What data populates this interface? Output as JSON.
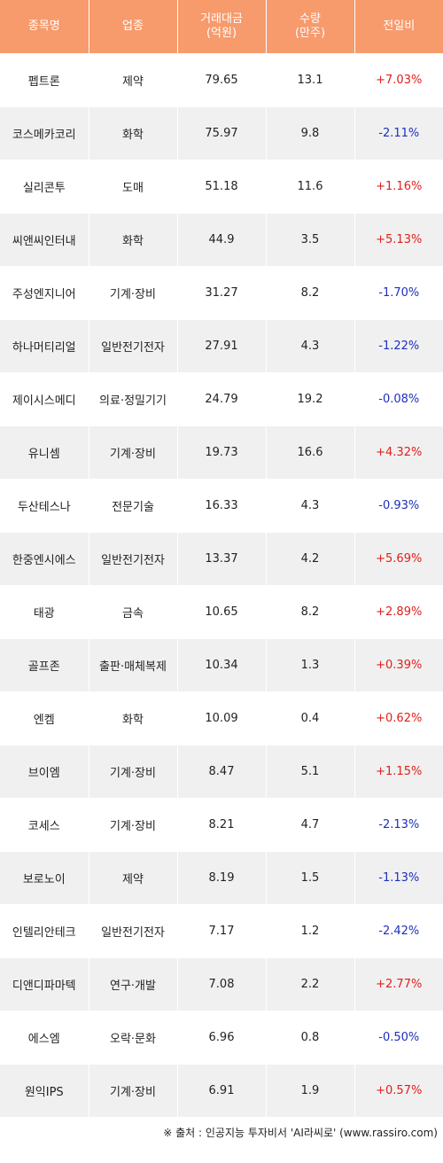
{
  "header": {
    "col_name": "종목명",
    "col_sector": "업종",
    "col_volume_line1": "거래대금",
    "col_volume_line2": "(억원)",
    "col_qty_line1": "수량",
    "col_qty_line2": "(만주)",
    "col_change": "전일비"
  },
  "colors": {
    "header_bg": "#f79a6c",
    "positive": "#e0201b",
    "negative": "#1d2fbf",
    "stripe": "#f0f0f0"
  },
  "rows": [
    {
      "name": "펩트론",
      "sector": "제약",
      "amount": "79.65",
      "qty": "13.1",
      "change": "+7.03%",
      "dir": "pos"
    },
    {
      "name": "코스메카코리",
      "sector": "화학",
      "amount": "75.97",
      "qty": "9.8",
      "change": "-2.11%",
      "dir": "neg"
    },
    {
      "name": "실리콘투",
      "sector": "도매",
      "amount": "51.18",
      "qty": "11.6",
      "change": "+1.16%",
      "dir": "pos"
    },
    {
      "name": "씨앤씨인터내",
      "sector": "화학",
      "amount": "44.9",
      "qty": "3.5",
      "change": "+5.13%",
      "dir": "pos"
    },
    {
      "name": "주성엔지니어",
      "sector": "기계·장비",
      "amount": "31.27",
      "qty": "8.2",
      "change": "-1.70%",
      "dir": "neg"
    },
    {
      "name": "하나머티리얼",
      "sector": "일반전기전자",
      "amount": "27.91",
      "qty": "4.3",
      "change": "-1.22%",
      "dir": "neg"
    },
    {
      "name": "제이시스메디",
      "sector": "의료·정밀기기",
      "amount": "24.79",
      "qty": "19.2",
      "change": "-0.08%",
      "dir": "neg"
    },
    {
      "name": "유니셈",
      "sector": "기계·장비",
      "amount": "19.73",
      "qty": "16.6",
      "change": "+4.32%",
      "dir": "pos"
    },
    {
      "name": "두산테스나",
      "sector": "전문기술",
      "amount": "16.33",
      "qty": "4.3",
      "change": "-0.93%",
      "dir": "neg"
    },
    {
      "name": "한중엔시에스",
      "sector": "일반전기전자",
      "amount": "13.37",
      "qty": "4.2",
      "change": "+5.69%",
      "dir": "pos"
    },
    {
      "name": "태광",
      "sector": "금속",
      "amount": "10.65",
      "qty": "8.2",
      "change": "+2.89%",
      "dir": "pos"
    },
    {
      "name": "골프존",
      "sector": "출판·매체복제",
      "amount": "10.34",
      "qty": "1.3",
      "change": "+0.39%",
      "dir": "pos"
    },
    {
      "name": "엔켐",
      "sector": "화학",
      "amount": "10.09",
      "qty": "0.4",
      "change": "+0.62%",
      "dir": "pos"
    },
    {
      "name": "브이엠",
      "sector": "기계·장비",
      "amount": "8.47",
      "qty": "5.1",
      "change": "+1.15%",
      "dir": "pos"
    },
    {
      "name": "코세스",
      "sector": "기계·장비",
      "amount": "8.21",
      "qty": "4.7",
      "change": "-2.13%",
      "dir": "neg"
    },
    {
      "name": "보로노이",
      "sector": "제약",
      "amount": "8.19",
      "qty": "1.5",
      "change": "-1.13%",
      "dir": "neg"
    },
    {
      "name": "인텔리안테크",
      "sector": "일반전기전자",
      "amount": "7.17",
      "qty": "1.2",
      "change": "-2.42%",
      "dir": "neg"
    },
    {
      "name": "디앤디파마텍",
      "sector": "연구·개발",
      "amount": "7.08",
      "qty": "2.2",
      "change": "+2.77%",
      "dir": "pos"
    },
    {
      "name": "에스엠",
      "sector": "오락·문화",
      "amount": "6.96",
      "qty": "0.8",
      "change": "-0.50%",
      "dir": "neg"
    },
    {
      "name": "원익IPS",
      "sector": "기계·장비",
      "amount": "6.91",
      "qty": "1.9",
      "change": "+0.57%",
      "dir": "pos"
    }
  ],
  "footer": {
    "source": "※ 출처 : 인공지능 투자비서 'AI라씨로' (www.rassiro.com)"
  }
}
